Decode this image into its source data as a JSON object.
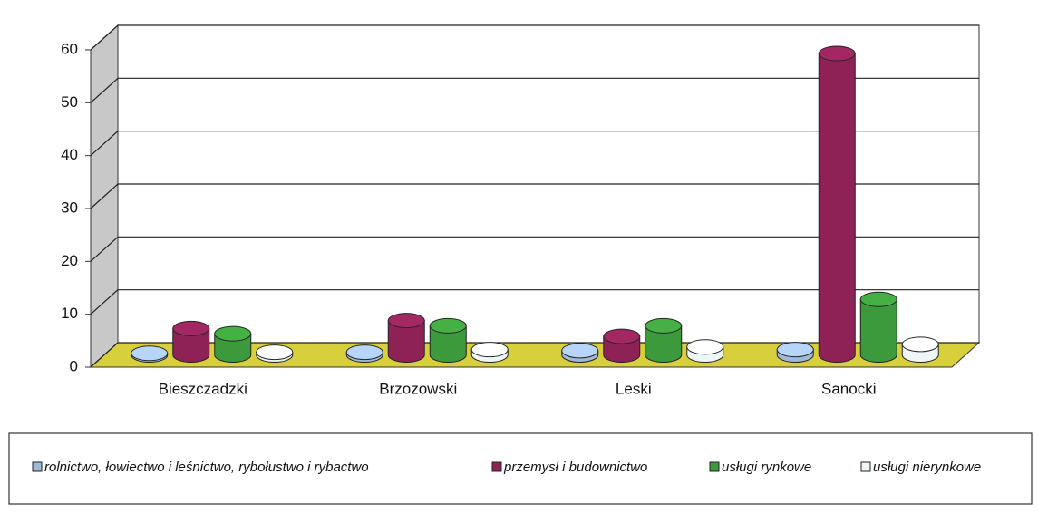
{
  "chart_data": {
    "type": "bar3d",
    "categories": [
      "Bieszczadzki",
      "Brzozowski",
      "Leski",
      "Sanocki"
    ],
    "series": [
      {
        "name": "rolnictwo, łowiectwo i leśnictwo, rybołustwo i rybactwo",
        "color": "#9fb9d8",
        "values": [
          0.3,
          0.5,
          0.8,
          1
        ]
      },
      {
        "name": "przemysł i budownictwo",
        "color": "#8e2256",
        "values": [
          5,
          6.5,
          3.5,
          57
        ]
      },
      {
        "name": "usługi rynkowe",
        "color": "#3c9a3c",
        "values": [
          4,
          5.5,
          5.5,
          10.5
        ]
      },
      {
        "name": "usługi nierynkowe",
        "color": "#eef6f8",
        "values": [
          0.5,
          1,
          1.5,
          2
        ]
      }
    ],
    "ylim": [
      0,
      60
    ],
    "yticks": [
      0,
      10,
      20,
      30,
      40,
      50,
      60
    ],
    "grid": true
  }
}
